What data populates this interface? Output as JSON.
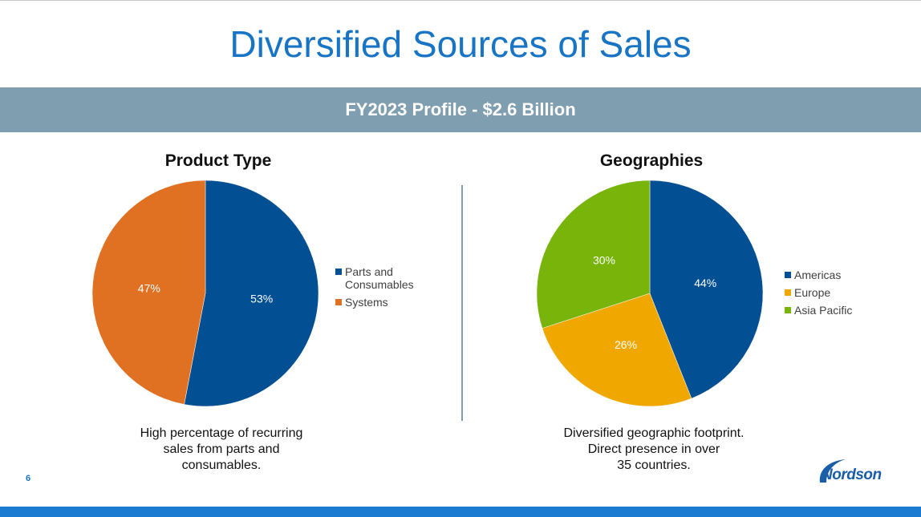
{
  "slide": {
    "title": "Diversified Sources of Sales",
    "banner": "FY2023 Profile - $2.6 Billion",
    "page_number": "6",
    "logo_text": "Nordson"
  },
  "colors": {
    "title": "#1874c4",
    "banner": "#7f9eb0",
    "bottom_bar": "#1a7bd0"
  },
  "chart_data": [
    {
      "type": "pie",
      "title": "Product Type",
      "series": [
        {
          "name": "Parts and Consumables",
          "value": 53,
          "label": "53%",
          "color": "#034f93"
        },
        {
          "name": "Systems",
          "value": 47,
          "label": "47%",
          "color": "#e07122"
        }
      ],
      "legend_position": "right",
      "caption": [
        "High percentage of recurring",
        "sales from parts and",
        "consumables."
      ]
    },
    {
      "type": "pie",
      "title": "Geographies",
      "series": [
        {
          "name": "Americas",
          "value": 44,
          "label": "44%",
          "color": "#034f93"
        },
        {
          "name": "Europe",
          "value": 26,
          "label": "26%",
          "color": "#f0a800"
        },
        {
          "name": "Asia Pacific",
          "value": 30,
          "label": "30%",
          "color": "#78b40a"
        }
      ],
      "legend_position": "right",
      "caption": [
        "Diversified geographic footprint.",
        "Direct presence in over",
        "35 countries."
      ]
    }
  ]
}
